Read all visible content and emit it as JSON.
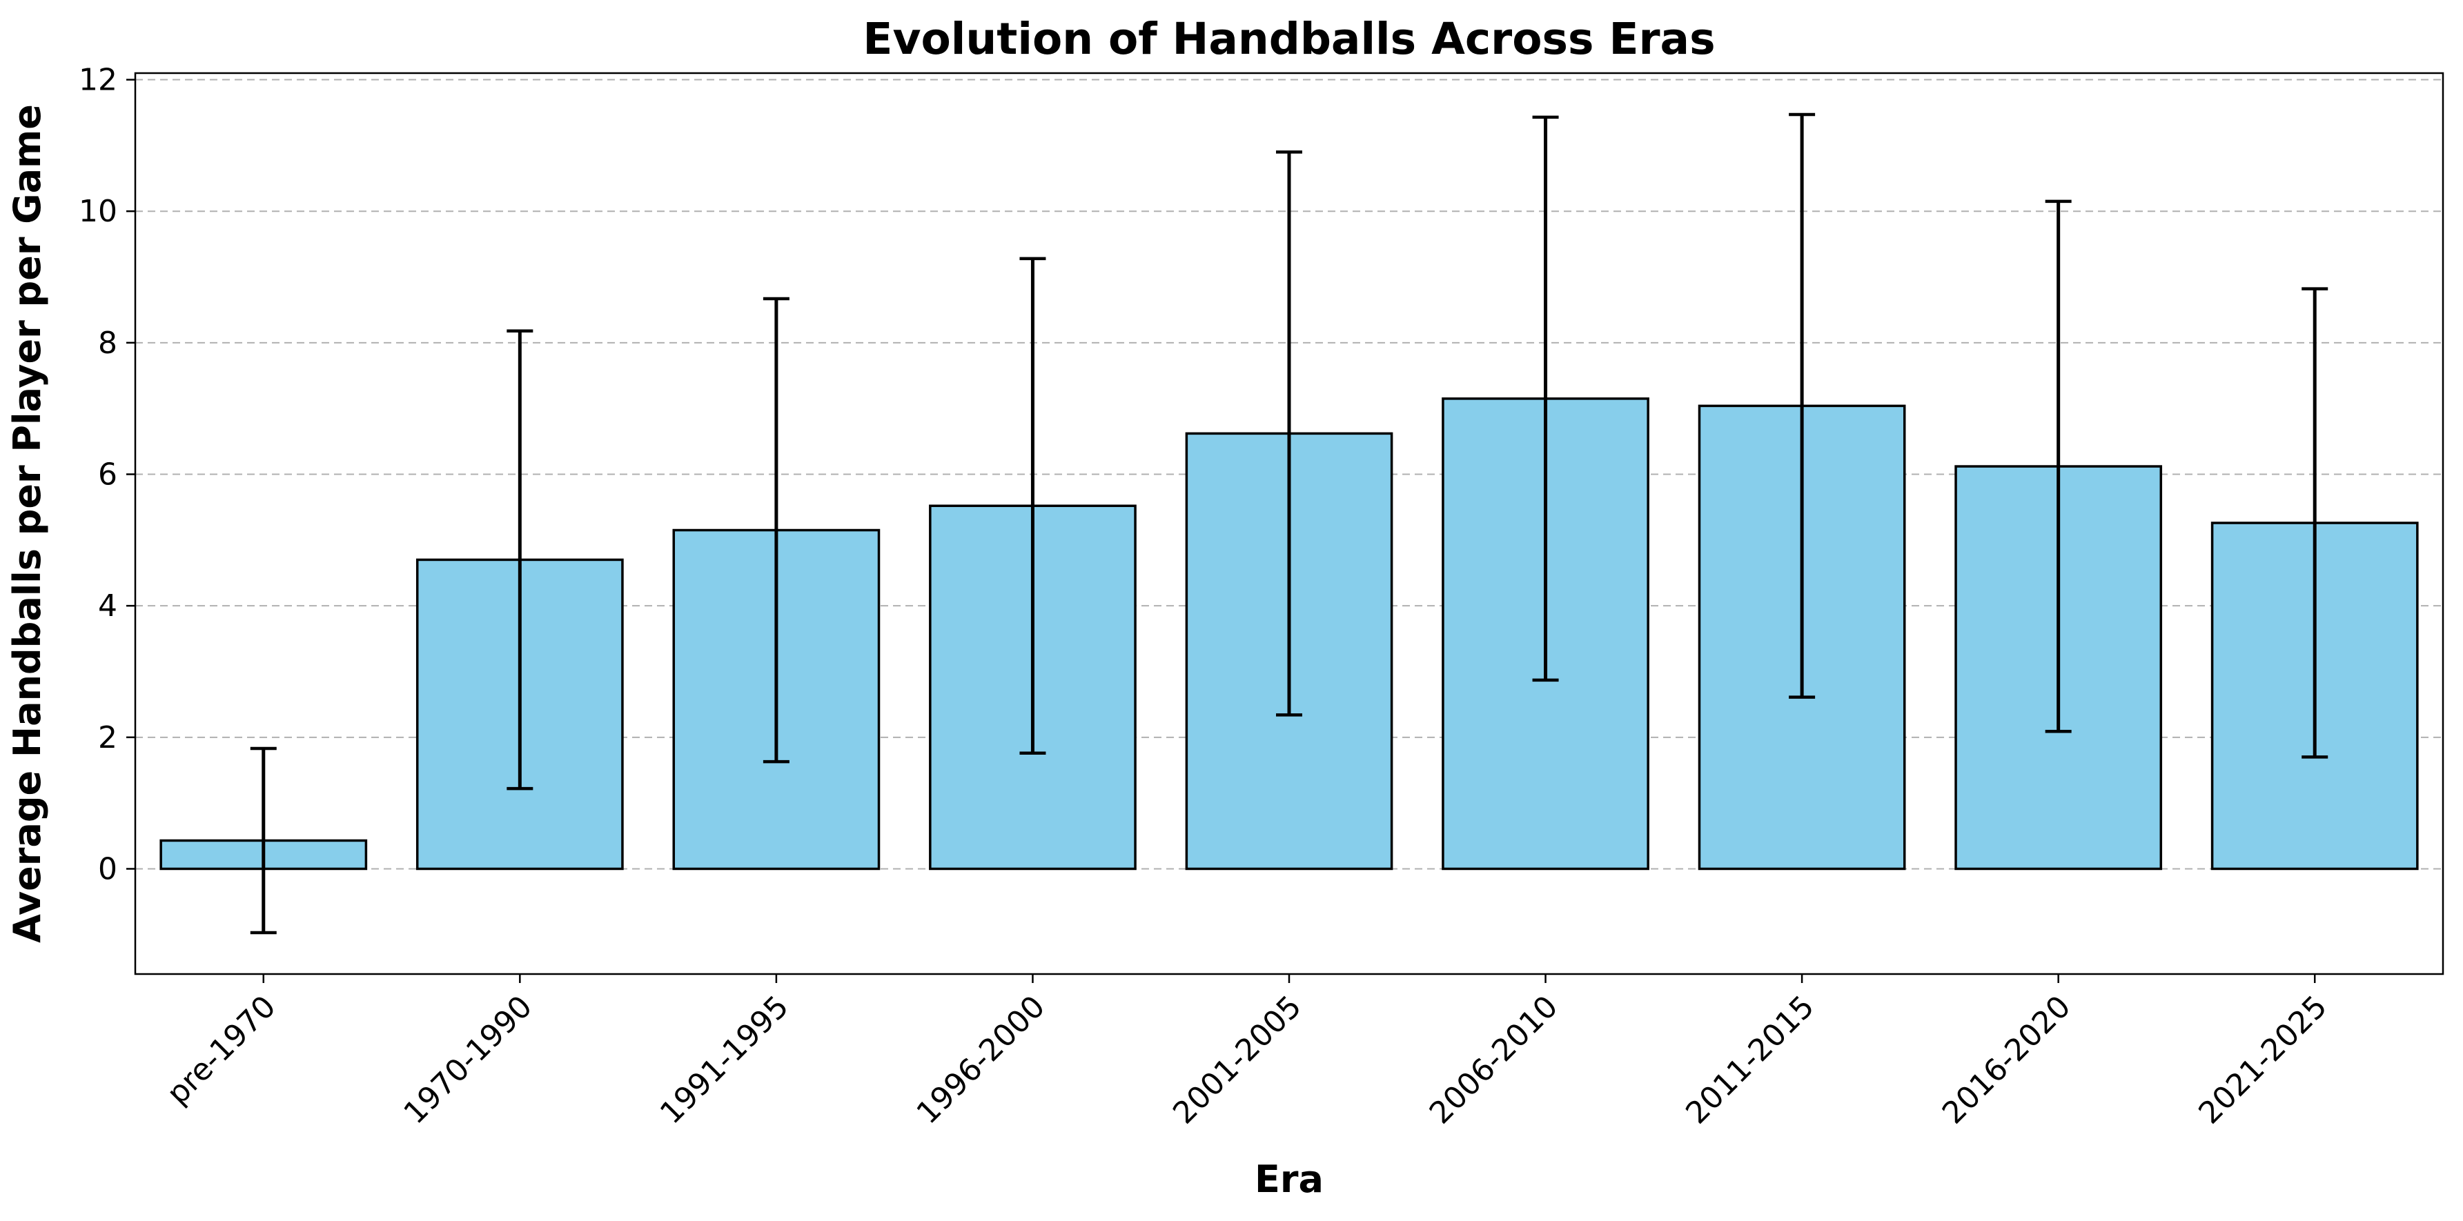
{
  "chart_data": {
    "type": "bar",
    "title": "Evolution of Handballs Across Eras",
    "xlabel": "Era",
    "ylabel": "Average Handballs per Player per Game",
    "categories": [
      "pre-1970",
      "1970-1990",
      "1991-1995",
      "1996-2000",
      "2001-2005",
      "2006-2010",
      "2011-2015",
      "2016-2020",
      "2021-2025"
    ],
    "values": [
      0.43,
      4.7,
      5.15,
      5.52,
      6.62,
      7.15,
      7.04,
      6.12,
      5.26
    ],
    "error": [
      1.4,
      3.48,
      3.52,
      3.76,
      4.28,
      4.28,
      4.43,
      4.03,
      3.56
    ],
    "ylim": [
      -1.6,
      12.1
    ],
    "yticks": [
      0,
      2,
      4,
      6,
      8,
      10,
      12
    ],
    "ytick_labels": [
      "0",
      "2",
      "4",
      "6",
      "8",
      "10",
      "12"
    ],
    "grid": "y-dashed",
    "colors": {
      "bar_fill": "#87CEEB",
      "bar_edge": "#000000",
      "grid": "#b0b0b0",
      "errorbar": "#000000"
    }
  }
}
